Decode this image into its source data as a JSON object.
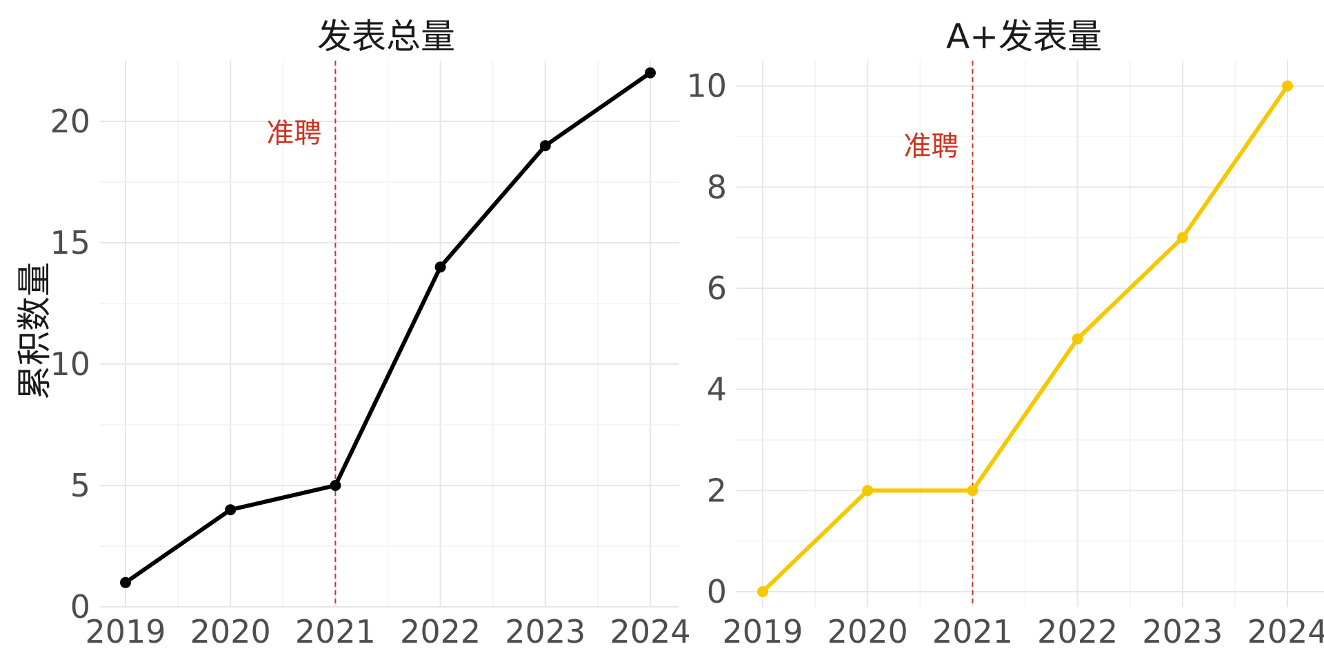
{
  "chart_data": [
    {
      "type": "line",
      "title": "发表总量",
      "xlabel": "",
      "ylabel": "累积数量",
      "x": [
        2019,
        2020,
        2021,
        2022,
        2023,
        2024
      ],
      "series": [
        {
          "values": [
            1,
            4,
            5,
            14,
            19,
            22
          ],
          "color": "#000000"
        }
      ],
      "xlim": [
        2019,
        2024
      ],
      "ylim": [
        0,
        22.5
      ],
      "xticks": [
        "2019",
        "2020",
        "2021",
        "2022",
        "2023",
        "2024"
      ],
      "yticks": [
        "0",
        "5",
        "10",
        "15",
        "20"
      ],
      "ytick_values": [
        0,
        5,
        10,
        15,
        20
      ],
      "grid": true,
      "vline": {
        "x": 2021,
        "label": "准聘",
        "color": "#cc3322",
        "label_y": 19.5
      }
    },
    {
      "type": "line",
      "title": "A+发表量",
      "xlabel": "",
      "ylabel": "",
      "x": [
        2019,
        2020,
        2021,
        2022,
        2023,
        2024
      ],
      "series": [
        {
          "values": [
            0,
            2,
            2,
            5,
            7,
            10
          ],
          "color": "#f5c800"
        }
      ],
      "xlim": [
        2019,
        2024
      ],
      "ylim": [
        -0.3,
        10.5
      ],
      "xticks": [
        "2019",
        "2020",
        "2021",
        "2022",
        "2023",
        "2024"
      ],
      "yticks": [
        "0",
        "2",
        "4",
        "6",
        "8",
        "10"
      ],
      "ytick_values": [
        0,
        2,
        4,
        6,
        8,
        10
      ],
      "grid": true,
      "vline": {
        "x": 2021,
        "label": "准聘",
        "color": "#cc3322",
        "label_y": 8.8
      }
    }
  ]
}
